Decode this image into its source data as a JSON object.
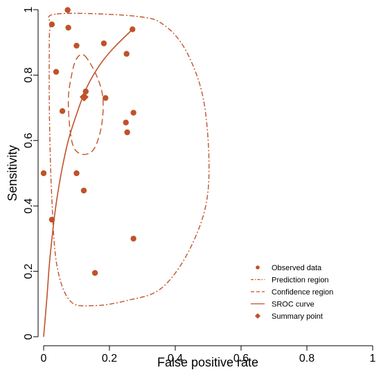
{
  "chart_data": {
    "type": "scatter",
    "title": "",
    "xlabel": "False positive rate",
    "ylabel": "Sensitivity",
    "xlim": [
      0,
      1
    ],
    "ylim": [
      0,
      1
    ],
    "x_ticks": [
      "0",
      "0.2",
      "0.4",
      "0.6",
      "0.8",
      "1"
    ],
    "y_ticks": [
      "0",
      "0.2",
      "0.4",
      "0.6",
      "0.8",
      "1"
    ],
    "grid": false,
    "legend_position": "bottom-right",
    "color": "#c0522a",
    "legend": [
      {
        "key": "observed",
        "label": "Observed data",
        "style": "dot"
      },
      {
        "key": "prediction",
        "label": "Prediction region",
        "style": "dashdot"
      },
      {
        "key": "confidence",
        "label": "Confidence region",
        "style": "dashed"
      },
      {
        "key": "sroc",
        "label": "SROC curve",
        "style": "solid"
      },
      {
        "key": "summary",
        "label": "Summary point",
        "style": "diamond"
      }
    ],
    "series": [
      {
        "key": "observed",
        "name": "Observed data",
        "points": [
          {
            "x": 0.0,
            "y": 0.5
          },
          {
            "x": 0.025,
            "y": 0.955
          },
          {
            "x": 0.025,
            "y": 0.358
          },
          {
            "x": 0.038,
            "y": 0.81
          },
          {
            "x": 0.057,
            "y": 0.69
          },
          {
            "x": 0.073,
            "y": 0.999
          },
          {
            "x": 0.075,
            "y": 0.945
          },
          {
            "x": 0.1,
            "y": 0.89
          },
          {
            "x": 0.1,
            "y": 0.5
          },
          {
            "x": 0.122,
            "y": 0.447
          },
          {
            "x": 0.128,
            "y": 0.75
          },
          {
            "x": 0.156,
            "y": 0.195
          },
          {
            "x": 0.183,
            "y": 0.897
          },
          {
            "x": 0.188,
            "y": 0.73
          },
          {
            "x": 0.25,
            "y": 0.655
          },
          {
            "x": 0.252,
            "y": 0.865
          },
          {
            "x": 0.254,
            "y": 0.625
          },
          {
            "x": 0.27,
            "y": 0.94
          },
          {
            "x": 0.273,
            "y": 0.685
          },
          {
            "x": 0.273,
            "y": 0.3
          }
        ]
      },
      {
        "key": "sroc",
        "name": "SROC curve",
        "points": [
          {
            "x": 0.0,
            "y": 0.0
          },
          {
            "x": 0.01,
            "y": 0.12
          },
          {
            "x": 0.02,
            "y": 0.25
          },
          {
            "x": 0.04,
            "y": 0.42
          },
          {
            "x": 0.07,
            "y": 0.58
          },
          {
            "x": 0.1,
            "y": 0.68
          },
          {
            "x": 0.13,
            "y": 0.76
          },
          {
            "x": 0.17,
            "y": 0.83
          },
          {
            "x": 0.21,
            "y": 0.88
          },
          {
            "x": 0.27,
            "y": 0.94
          }
        ]
      },
      {
        "key": "confidence",
        "name": "Confidence region",
        "points": [
          {
            "x": 0.124,
            "y": 0.86
          },
          {
            "x": 0.16,
            "y": 0.8
          },
          {
            "x": 0.18,
            "y": 0.73
          },
          {
            "x": 0.175,
            "y": 0.64
          },
          {
            "x": 0.15,
            "y": 0.57
          },
          {
            "x": 0.11,
            "y": 0.56
          },
          {
            "x": 0.085,
            "y": 0.6
          },
          {
            "x": 0.075,
            "y": 0.72
          },
          {
            "x": 0.085,
            "y": 0.8
          },
          {
            "x": 0.1,
            "y": 0.85
          }
        ]
      },
      {
        "key": "prediction",
        "name": "Prediction region",
        "points": [
          {
            "x": 0.04,
            "y": 0.987
          },
          {
            "x": 0.28,
            "y": 0.98
          },
          {
            "x": 0.37,
            "y": 0.95
          },
          {
            "x": 0.44,
            "y": 0.86
          },
          {
            "x": 0.49,
            "y": 0.7
          },
          {
            "x": 0.5,
            "y": 0.45
          },
          {
            "x": 0.45,
            "y": 0.28
          },
          {
            "x": 0.36,
            "y": 0.15
          },
          {
            "x": 0.25,
            "y": 0.11
          },
          {
            "x": 0.15,
            "y": 0.095
          },
          {
            "x": 0.08,
            "y": 0.11
          },
          {
            "x": 0.04,
            "y": 0.22
          },
          {
            "x": 0.025,
            "y": 0.42
          },
          {
            "x": 0.018,
            "y": 0.65
          },
          {
            "x": 0.017,
            "y": 0.85
          },
          {
            "x": 0.02,
            "y": 0.95
          }
        ]
      },
      {
        "key": "summary",
        "name": "Summary point",
        "points": [
          {
            "x": 0.123,
            "y": 0.733
          }
        ]
      }
    ]
  }
}
